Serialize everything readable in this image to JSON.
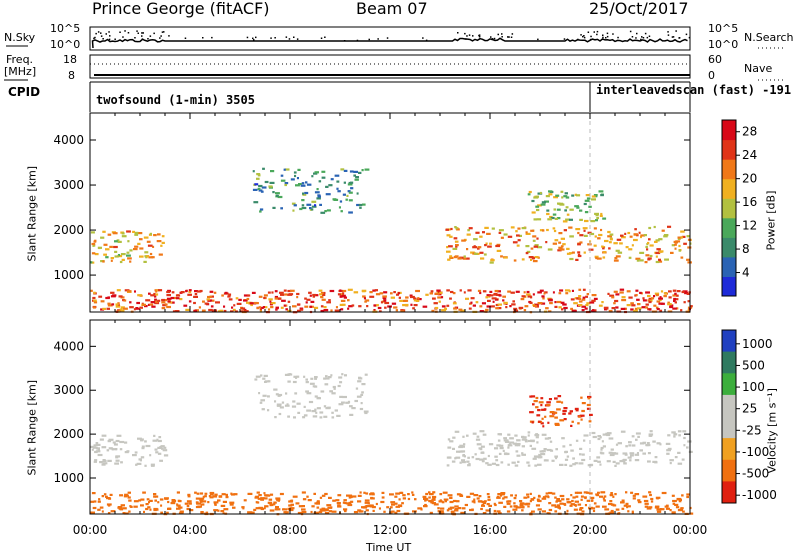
{
  "header": {
    "station": "Prince George (fitACF)",
    "beam": "Beam 07",
    "date": "25/Oct/2017"
  },
  "top_panels": {
    "nsky_label": "N.Sky",
    "nsky_ticks": [
      "10^5",
      "10^0"
    ],
    "nsearch_label": "N.Search",
    "nsearch_ticks": [
      "10^5",
      "10^0"
    ],
    "freq_label": "Freq.",
    "freq_unit": "[MHz]",
    "freq_ticks": [
      "18",
      "8"
    ],
    "nave_label": "Nave",
    "nave_ticks": [
      "60",
      "0"
    ],
    "cpid_label": "CPID",
    "cpid_segments": [
      {
        "name": "twofsound (1-min) 3505",
        "start_hour": 0,
        "end_hour": 20
      },
      {
        "name": "interleavedscan (fast) -191",
        "start_hour": 20,
        "end_hour": 24
      }
    ]
  },
  "chart_data": [
    {
      "type": "heatmap",
      "title": "",
      "ylabel": "Slant Range [km]",
      "xlabel": "",
      "xlim": [
        0,
        24
      ],
      "ylim": [
        180,
        4600
      ],
      "yticks": [
        "1000",
        "2000",
        "3000",
        "4000"
      ],
      "colorbar": {
        "label": "Power [dB]",
        "ticks": [
          "4",
          "8",
          "12",
          "16",
          "20",
          "24",
          "28"
        ],
        "range": [
          0,
          30
        ],
        "colors": [
          "#1e2bd8",
          "#2a63b4",
          "#3a8a6a",
          "#4aa85a",
          "#b2c040",
          "#f0b020",
          "#f07818",
          "#e03418",
          "#d80818"
        ]
      },
      "regions": [
        {
          "name": "echo-band",
          "hours": [
            0,
            3
          ],
          "range_km": [
            1300,
            2000
          ],
          "db": 18
        },
        {
          "name": "echo-band",
          "hours": [
            6.5,
            11
          ],
          "range_km": [
            2400,
            3400
          ],
          "db": 9
        },
        {
          "name": "echo-band",
          "hours": [
            14.2,
            24
          ],
          "range_km": [
            1300,
            2100
          ],
          "db": 20
        },
        {
          "name": "echo-band",
          "hours": [
            17.5,
            20.5
          ],
          "range_km": [
            2200,
            2900
          ],
          "db": 13
        },
        {
          "name": "echo-band",
          "hours": [
            0,
            24
          ],
          "range_km": [
            200,
            700
          ],
          "db": 24
        }
      ]
    },
    {
      "type": "heatmap",
      "title": "",
      "ylabel": "Slant Range [km]",
      "xlabel": "Time UT",
      "xlim": [
        0,
        24
      ],
      "xticks": [
        "00:00",
        "04:00",
        "08:00",
        "12:00",
        "16:00",
        "20:00",
        "00:00"
      ],
      "ylim": [
        180,
        4600
      ],
      "yticks": [
        "1000",
        "2000",
        "3000",
        "4000"
      ],
      "colorbar": {
        "label": "Velocity [m s⁻¹]",
        "ticks": [
          "1000",
          "500",
          "100",
          "25",
          "-25",
          "-100",
          "-500",
          "-1000"
        ],
        "colors": [
          "#2040c0",
          "#2f7a60",
          "#3cae3c",
          "#c6c6c0",
          "#c6c6c0",
          "#f0a020",
          "#f07010",
          "#e02010"
        ]
      },
      "regions": [
        {
          "name": "echo-band",
          "hours": [
            0,
            3
          ],
          "range_km": [
            1300,
            2000
          ],
          "velocity": 0
        },
        {
          "name": "echo-band",
          "hours": [
            6.5,
            11
          ],
          "range_km": [
            2400,
            3400
          ],
          "velocity": 0
        },
        {
          "name": "echo-band",
          "hours": [
            14.2,
            24
          ],
          "range_km": [
            1300,
            2100
          ],
          "velocity": 0
        },
        {
          "name": "echo-band",
          "hours": [
            17.5,
            20
          ],
          "range_km": [
            2200,
            2900
          ],
          "velocity": -500
        },
        {
          "name": "echo-band",
          "hours": [
            0,
            24
          ],
          "range_km": [
            200,
            700
          ],
          "velocity": -200
        }
      ]
    }
  ]
}
